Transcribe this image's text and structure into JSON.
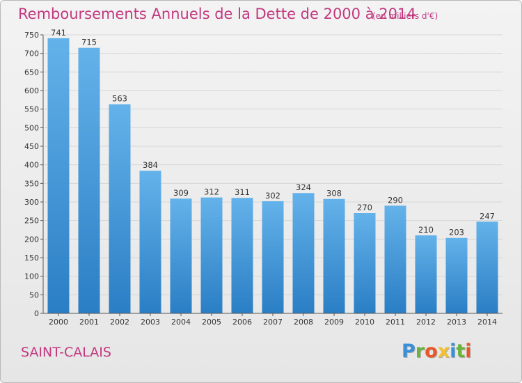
{
  "chart_data": {
    "type": "bar",
    "title": "Remboursements Annuels de la Dette de 2000 à 2014",
    "subtitle": "(en milliers d'€)",
    "categories": [
      "2000",
      "2001",
      "2002",
      "2003",
      "2004",
      "2005",
      "2006",
      "2007",
      "2008",
      "2009",
      "2010",
      "2011",
      "2012",
      "2013",
      "2014"
    ],
    "values": [
      741,
      715,
      563,
      384,
      309,
      312,
      311,
      302,
      324,
      308,
      270,
      290,
      210,
      203,
      247
    ],
    "ylim": [
      0,
      750
    ],
    "yticks": [
      0,
      50,
      100,
      150,
      200,
      250,
      300,
      350,
      400,
      450,
      500,
      550,
      600,
      650,
      700,
      750
    ],
    "grid": true,
    "bar_color_top": "#64b2ea",
    "bar_color_bottom": "#2a7ec4"
  },
  "footer": {
    "town": "SAINT-CALAIS",
    "logo_letters": [
      {
        "char": "P",
        "color": "#3a8fd9"
      },
      {
        "char": "r",
        "color": "#6bb33a"
      },
      {
        "char": "o",
        "color": "#e8562a"
      },
      {
        "char": "x",
        "color": "#f2c12e"
      },
      {
        "char": "i",
        "color": "#3a8fd9"
      },
      {
        "char": "t",
        "color": "#6bb33a"
      },
      {
        "char": "i",
        "color": "#e8562a"
      }
    ]
  },
  "colors": {
    "title": "#c2387f",
    "grid": "#d6d6d6"
  }
}
